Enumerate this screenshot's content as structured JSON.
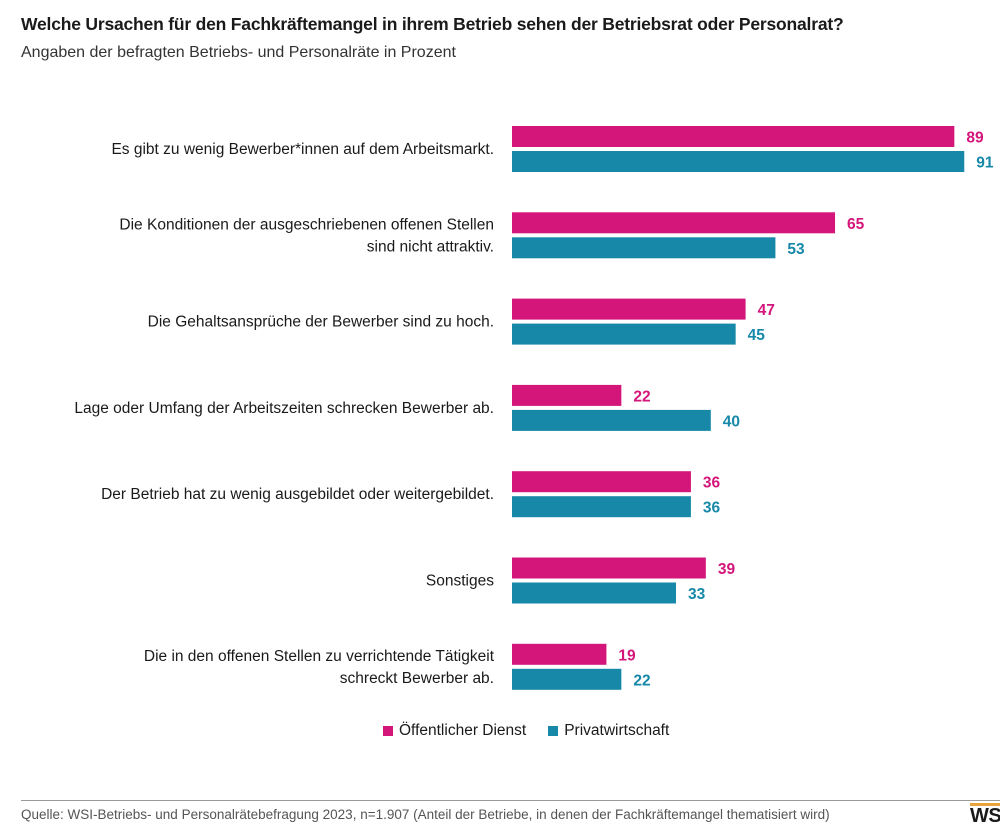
{
  "title": "Welche Ursachen für den Fachkräftemangel in ihrem Betrieb sehen der Betriebsrat oder Personalrat?",
  "subtitle": "Angaben der befragten Betriebs- und Personalräte in Prozent",
  "source": "Quelle: WSI-Betriebs- und Personalrätebefragung 2023, n=1.907 (Anteil der Betriebe, in denen der Fachkräftemangel thematisiert wird)",
  "logo": "WSI",
  "colors": {
    "oeffentlich": "#d4157a",
    "privat": "#1788a8"
  },
  "chart_data": {
    "type": "bar",
    "orientation": "horizontal",
    "unit": "Prozent",
    "categories": [
      [
        "Es gibt zu wenig Bewerber*innen auf dem Arbeitsmarkt."
      ],
      [
        "Die Konditionen der ausgeschriebenen offenen Stellen",
        "sind nicht attraktiv."
      ],
      [
        "Die Gehaltsansprüche der Bewerber sind zu hoch."
      ],
      [
        "Lage oder Umfang der Arbeitszeiten schrecken Bewerber ab."
      ],
      [
        "Der Betrieb hat zu wenig ausgebildet oder weitergebildet."
      ],
      [
        "Sonstiges"
      ],
      [
        "Die in den offenen Stellen zu verrichtende Tätigkeit",
        "schreckt Bewerber ab."
      ]
    ],
    "series": [
      {
        "name": "Öffentlicher Dienst",
        "values": [
          89,
          65,
          47,
          22,
          36,
          39,
          19
        ]
      },
      {
        "name": "Privatwirtschaft",
        "values": [
          91,
          53,
          45,
          40,
          36,
          33,
          22
        ]
      }
    ],
    "xlim": [
      0,
      100
    ],
    "grid": false,
    "legend_position": "bottom"
  }
}
